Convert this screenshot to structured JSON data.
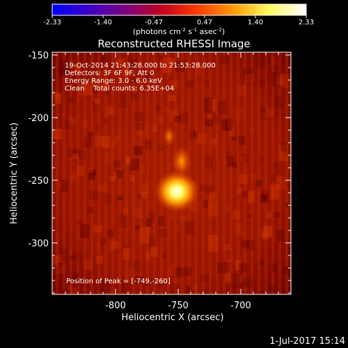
{
  "colorbar": {
    "ticks": [
      "-2.33",
      "-1.40",
      "-0.47",
      "0.47",
      "1.40",
      "2.33"
    ],
    "unit_parts": [
      "(photons cm",
      "-2",
      " s",
      "-1",
      " asec",
      "-2",
      ")"
    ],
    "stops": [
      "#0000ff",
      "#3b00c8",
      "#7a0080",
      "#c00020",
      "#ff3a00",
      "#ff9a00",
      "#ffff66",
      "#ffffff"
    ]
  },
  "title": "Reconstructed RHESSI Image",
  "annotation": {
    "time": "19-Oct-2014 21:43:28.000 to 21:53:28.000",
    "detectors": "Detectors: 3F 6F 9F, Att 0",
    "energy": "Energy Range: 3.0 - 6.0 keV",
    "clean": "Clean    Total counts: 6.35E+04"
  },
  "peak_label": "Position of Peak = [-749,-260]",
  "axes": {
    "xlabel": "Heliocentric X (arcsec)",
    "ylabel": "Heliocentric Y (arcsec)",
    "xticks": [
      "-800",
      "-750",
      "-700"
    ],
    "yticks": [
      "-150",
      "-200",
      "-250",
      "-300"
    ]
  },
  "footer_date": "1-Jul-2017 15:14",
  "chart_data": {
    "type": "heatmap",
    "title": "Reconstructed RHESSI Image",
    "xlabel": "Heliocentric X (arcsec)",
    "ylabel": "Heliocentric Y (arcsec)",
    "xlim": [
      -845,
      -655
    ],
    "ylim": [
      -345,
      -145
    ],
    "colorbar_range": [
      -2.33,
      2.33
    ],
    "peak": [
      -749,
      -260
    ]
  }
}
